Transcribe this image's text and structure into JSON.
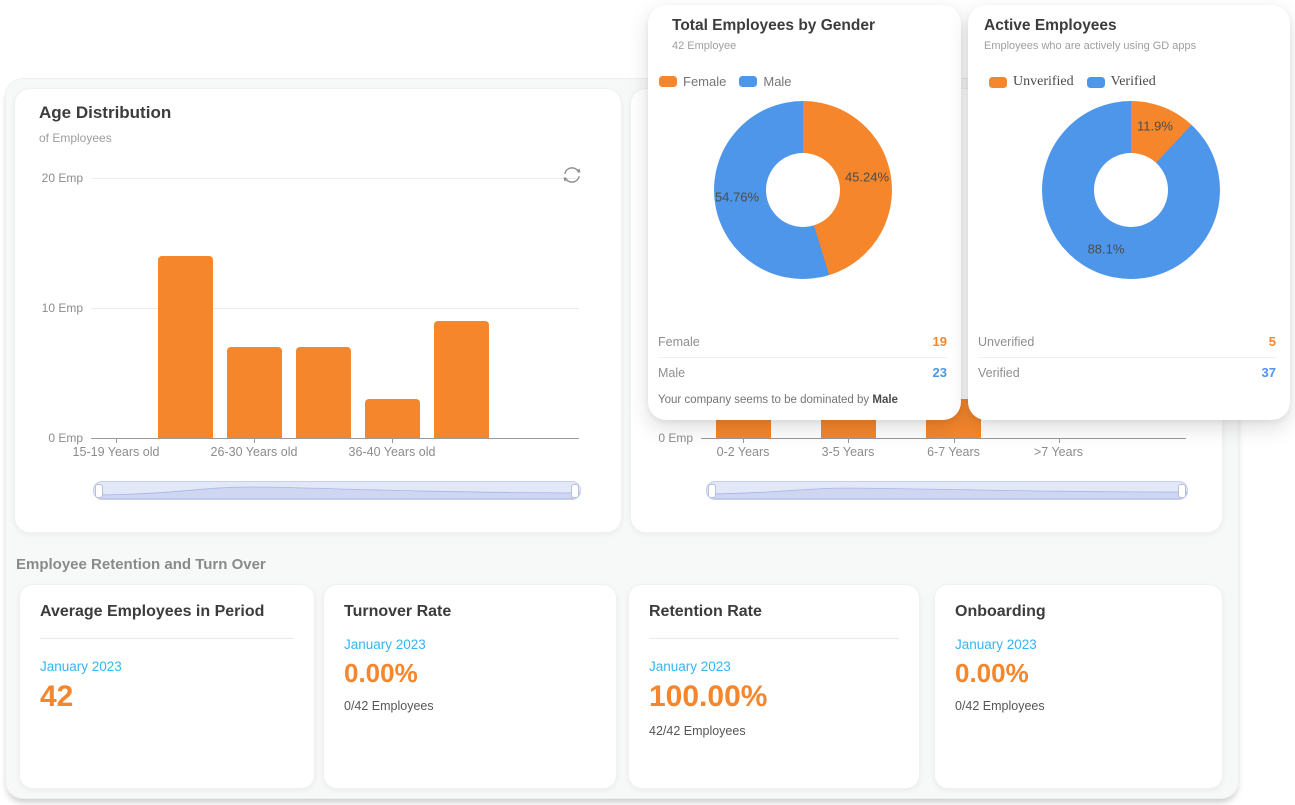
{
  "colors": {
    "orange": "#F5862C",
    "blue": "#4D96EA",
    "light_blue": "#35B5F3",
    "title_text": "#3C3C3C",
    "muted_text": "#9E9E9E",
    "axis_text": "#8C8C8C"
  },
  "age_card": {
    "title": "Age Distribution",
    "subtitle": "of Employees"
  },
  "gender_card": {
    "title": "Total Employees by Gender",
    "subtitle": "42 Employee",
    "legend": [
      "Female",
      "Male"
    ],
    "rows": [
      {
        "label": "Female",
        "value": "19",
        "color": "#F5862C"
      },
      {
        "label": "Male",
        "value": "23",
        "color": "#4D96EA"
      }
    ],
    "footer_prefix": "Your company seems to be dominated by ",
    "footer_bold": "Male"
  },
  "active_card": {
    "title": "Active Employees",
    "subtitle": "Employees who are actively using GD apps",
    "legend": [
      "Unverified",
      "Verified"
    ],
    "rows": [
      {
        "label": "Unverified",
        "value": "5",
        "color": "#F5862C"
      },
      {
        "label": "Verified",
        "value": "37",
        "color": "#4D96EA"
      }
    ]
  },
  "retention_section": {
    "title": "Employee Retention and Turn Over",
    "cards": [
      {
        "title": "Average Employees in Period",
        "divider": true,
        "period": "January 2023",
        "value": "42",
        "sub": ""
      },
      {
        "title": "Turnover Rate",
        "divider": false,
        "period": "January 2023",
        "value": "0.00%",
        "sub": "0/42 Employees"
      },
      {
        "title": "Retention Rate",
        "divider": true,
        "period": "January 2023",
        "value": "100.00%",
        "sub": "42/42 Employees"
      },
      {
        "title": "Onboarding",
        "divider": false,
        "period": "January 2023",
        "value": "0.00%",
        "sub": "0/42 Employees"
      }
    ]
  },
  "chart_data": [
    {
      "id": "age_distribution",
      "type": "bar",
      "title": "Age Distribution",
      "subtitle": "of Employees",
      "categories": [
        "15-19 Years old",
        "",
        "26-30 Years old",
        "",
        "36-40 Years old",
        ""
      ],
      "values": [
        0,
        14,
        7,
        7,
        3,
        9
      ],
      "axis_note": "x axis shows every other category label; unlabeled categories exist between them",
      "y_ticks": [
        "20 Emp",
        "10 Emp",
        "0 Emp"
      ],
      "ylim": [
        0,
        20
      ],
      "grid": true,
      "bar_color": "#F5862C",
      "has_datazoom_slider": true,
      "has_refresh_icon": true
    },
    {
      "id": "employee_tenure",
      "type": "bar",
      "categories": [
        "0-2 Years",
        "3-5 Years",
        "6-7 Years",
        ">7 Years"
      ],
      "values": [
        null,
        null,
        null,
        0
      ],
      "occluded_note": "chart mostly hidden behind overlapping gender/active cards; only bar bases near the 0 Emp axis are visible; >7 Years shows no bar",
      "y_ticks": [
        "0 Emp"
      ],
      "bar_color": "#F5862C",
      "has_datazoom_slider": true
    },
    {
      "id": "gender_donut",
      "type": "pie",
      "donut": true,
      "start": "top, clockwise",
      "slices": [
        {
          "label": "Female",
          "value": 19,
          "pct": 45.24,
          "pct_label": "45.24%",
          "color": "#F5862C"
        },
        {
          "label": "Male",
          "value": 23,
          "pct": 54.76,
          "pct_label": "54.76%",
          "color": "#4D96EA"
        }
      ]
    },
    {
      "id": "active_donut",
      "type": "pie",
      "donut": true,
      "start": "top, clockwise",
      "slices": [
        {
          "label": "Unverified",
          "value": 5,
          "pct": 11.9,
          "pct_label": "11.9%",
          "color": "#F5862C"
        },
        {
          "label": "Verified",
          "value": 37,
          "pct": 88.1,
          "pct_label": "88.1%",
          "color": "#4D96EA"
        }
      ]
    }
  ]
}
